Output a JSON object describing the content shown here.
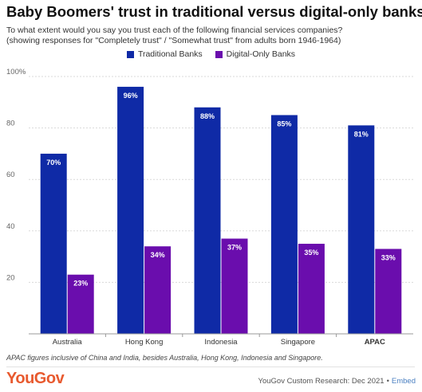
{
  "header": {
    "title": "Baby Boomers' trust in traditional versus digital-only banks",
    "subtitle_line1": "To what extent would you say you trust each of the following financial services companies?",
    "subtitle_line2": "(showing responses for \"Completely trust\" / \"Somewhat trust\" from adults born 1946-1964)"
  },
  "colors": {
    "traditional": "#0f2aa6",
    "digital": "#6a0dad",
    "grid": "#d9d9d9",
    "axis_text": "#666666"
  },
  "chart_data": {
    "type": "bar",
    "title": "Baby Boomers' trust in traditional versus digital-only banks",
    "categories": [
      "Australia",
      "Hong Kong",
      "Indonesia",
      "Singapore",
      "APAC"
    ],
    "bold_categories": [
      "APAC"
    ],
    "series": [
      {
        "name": "Traditional Banks",
        "values": [
          70,
          96,
          88,
          85,
          81
        ]
      },
      {
        "name": "Digital-Only Banks",
        "values": [
          23,
          34,
          37,
          35,
          33
        ]
      }
    ],
    "y_ticks": [
      {
        "value": 20,
        "label": "20"
      },
      {
        "value": 40,
        "label": "40"
      },
      {
        "value": 60,
        "label": "60"
      },
      {
        "value": 80,
        "label": "80"
      },
      {
        "value": 100,
        "label": "100%"
      }
    ],
    "ylim": [
      0,
      100
    ],
    "value_suffix": "%",
    "grid": true,
    "legend_position": "top-center"
  },
  "footer": {
    "note": "APAC figures inclusive of China and India, besides Australia, Hong Kong, Indonesia and Singapore.",
    "logo": "YouGov",
    "source": "YouGov Custom Research: Dec 2021",
    "separator": "•",
    "embed": "Embed"
  }
}
